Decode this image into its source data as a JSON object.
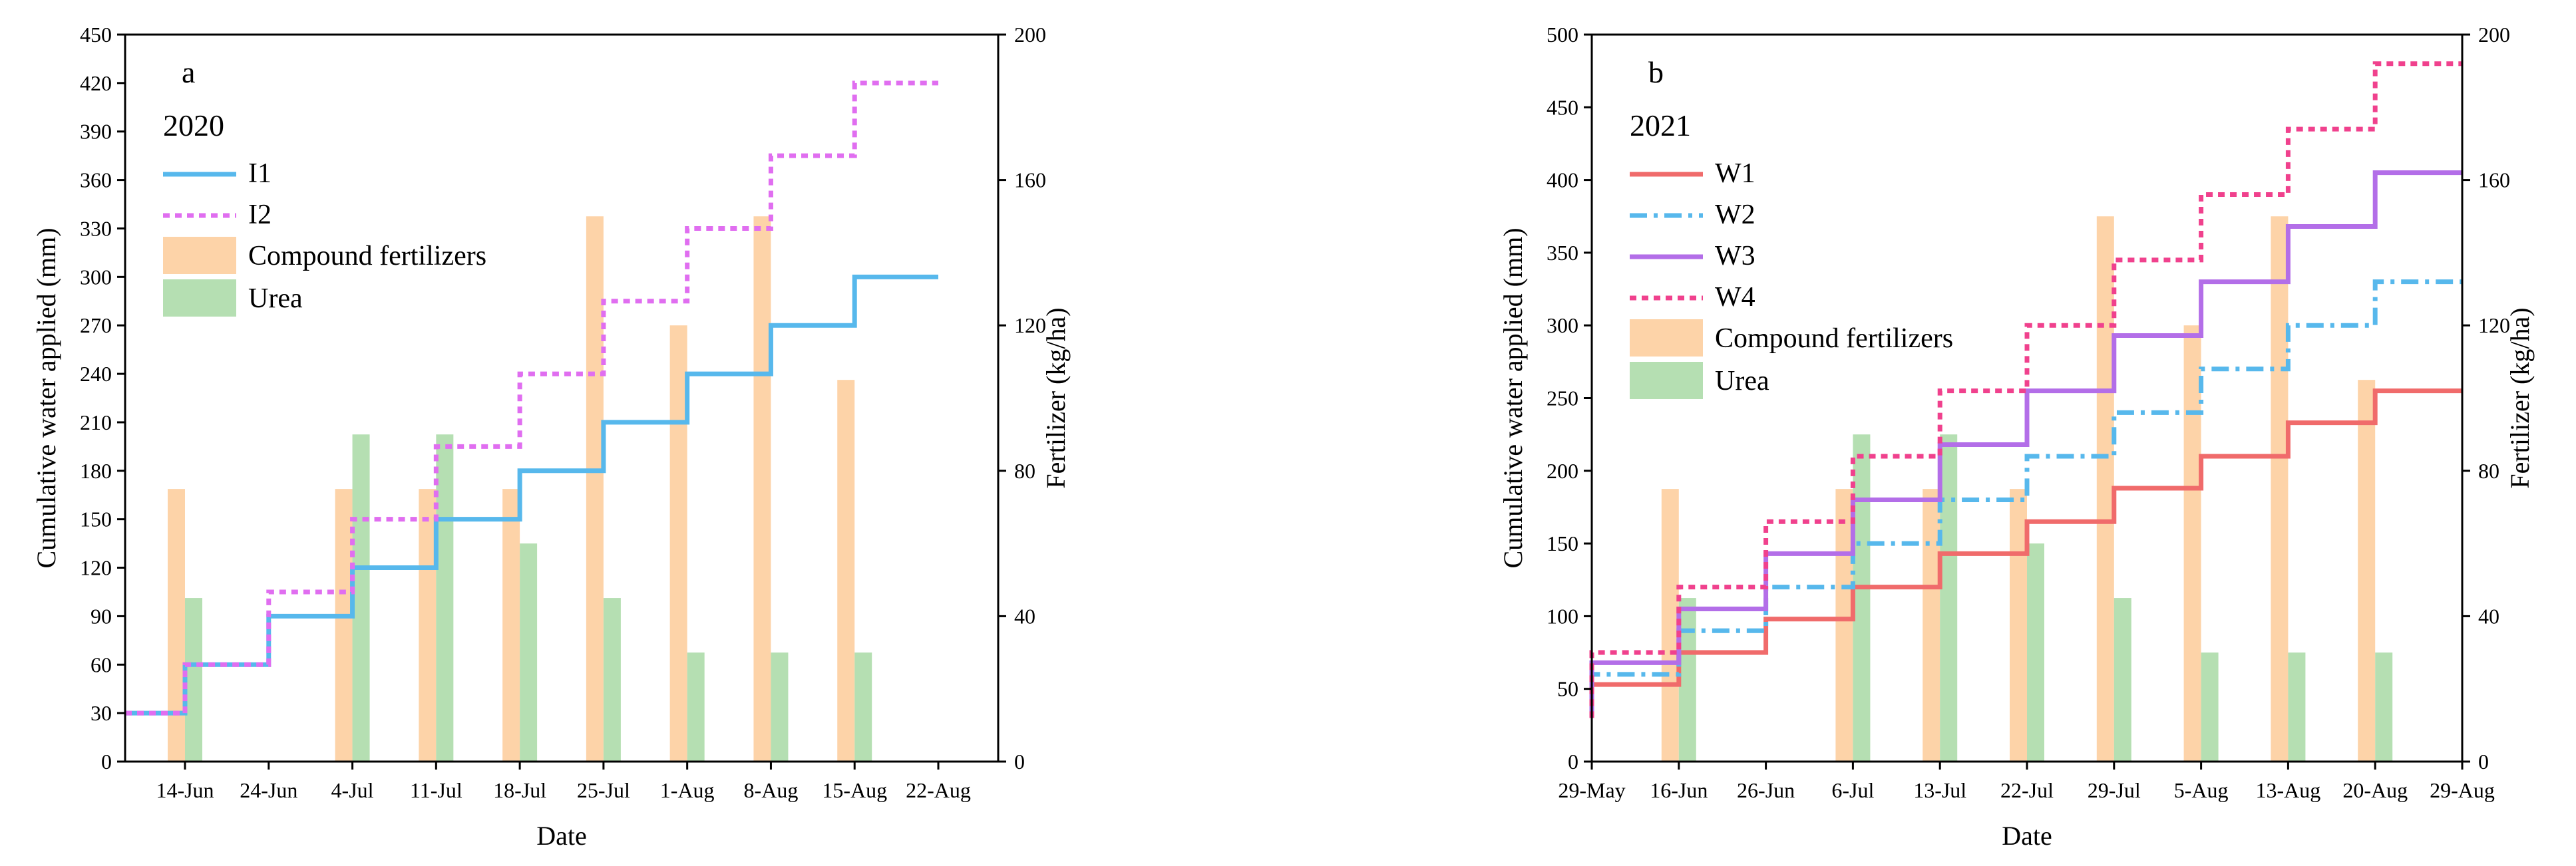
{
  "chart_data": [
    {
      "type": "bar+line",
      "panel_label": "a",
      "year_label": "2020",
      "xlabel": "Date",
      "ylabel_left": "Cumulative water applied (mm)",
      "ylabel_right": "Fertilizer (kg/ha)",
      "ylim_left": [
        0,
        450
      ],
      "ylim_right": [
        0,
        200
      ],
      "yticks_left": [
        0,
        30,
        60,
        90,
        120,
        150,
        180,
        210,
        240,
        270,
        300,
        330,
        360,
        390,
        420,
        450
      ],
      "yticks_right": [
        0,
        40,
        80,
        120,
        160,
        200
      ],
      "categories": [
        "14-Jun",
        "24-Jun",
        "4-Jul",
        "11-Jul",
        "18-Jul",
        "25-Jul",
        "1-Aug",
        "8-Aug",
        "15-Aug",
        "22-Aug"
      ],
      "legend_position": "top-left",
      "bar_series": [
        {
          "name": "Compound fertilizers",
          "color": "#fdd3a8",
          "values": [
            75,
            0,
            75,
            75,
            75,
            150,
            120,
            150,
            105,
            0
          ]
        },
        {
          "name": "Urea",
          "color": "#b5dfb2",
          "values": [
            45,
            0,
            90,
            90,
            60,
            45,
            30,
            30,
            30,
            0
          ]
        }
      ],
      "line_series": [
        {
          "name": "I1",
          "color": "#57b8ec",
          "style": "solid",
          "values": [
            30,
            60,
            90,
            120,
            150,
            180,
            210,
            240,
            270,
            300
          ]
        },
        {
          "name": "I2",
          "color": "#e06ef0",
          "style": "dotted",
          "values": [
            30,
            60,
            105,
            150,
            195,
            240,
            285,
            330,
            375,
            420
          ]
        }
      ]
    },
    {
      "type": "bar+line",
      "panel_label": "b",
      "year_label": "2021",
      "xlabel": "Date",
      "ylabel_left": "Cumulative water applied (mm)",
      "ylabel_right": "Fertilizer (kg/ha)",
      "ylim_left": [
        0,
        500
      ],
      "ylim_right": [
        0,
        200
      ],
      "yticks_left": [
        0,
        50,
        100,
        150,
        200,
        250,
        300,
        350,
        400,
        450,
        500
      ],
      "yticks_right": [
        0,
        40,
        80,
        120,
        160,
        200
      ],
      "categories": [
        "29-May",
        "16-Jun",
        "26-Jun",
        "6-Jul",
        "13-Jul",
        "22-Jul",
        "29-Jul",
        "5-Aug",
        "13-Aug",
        "20-Aug",
        "29-Aug"
      ],
      "legend_position": "top-left",
      "bar_series": [
        {
          "name": "Compound fertilizers",
          "color": "#fdd3a8",
          "values": [
            0,
            75,
            0,
            75,
            75,
            75,
            150,
            120,
            150,
            105,
            0
          ]
        },
        {
          "name": "Urea",
          "color": "#b5dfb2",
          "values": [
            0,
            45,
            0,
            90,
            90,
            60,
            45,
            30,
            30,
            30,
            0
          ]
        }
      ],
      "line_series": [
        {
          "name": "W1",
          "color": "#f06b6b",
          "style": "solid",
          "values": [
            30,
            53,
            75,
            98,
            120,
            143,
            165,
            188,
            210,
            233,
            255
          ]
        },
        {
          "name": "W2",
          "color": "#57b8ec",
          "style": "dashdot",
          "values": [
            30,
            60,
            90,
            120,
            150,
            180,
            210,
            240,
            270,
            300,
            330
          ]
        },
        {
          "name": "W3",
          "color": "#b36ee8",
          "style": "solid",
          "values": [
            30,
            68,
            105,
            143,
            180,
            218,
            255,
            293,
            330,
            368,
            405
          ]
        },
        {
          "name": "W4",
          "color": "#f0418d",
          "style": "dotted",
          "values": [
            30,
            75,
            120,
            165,
            210,
            255,
            300,
            345,
            390,
            435,
            480
          ]
        }
      ]
    }
  ]
}
